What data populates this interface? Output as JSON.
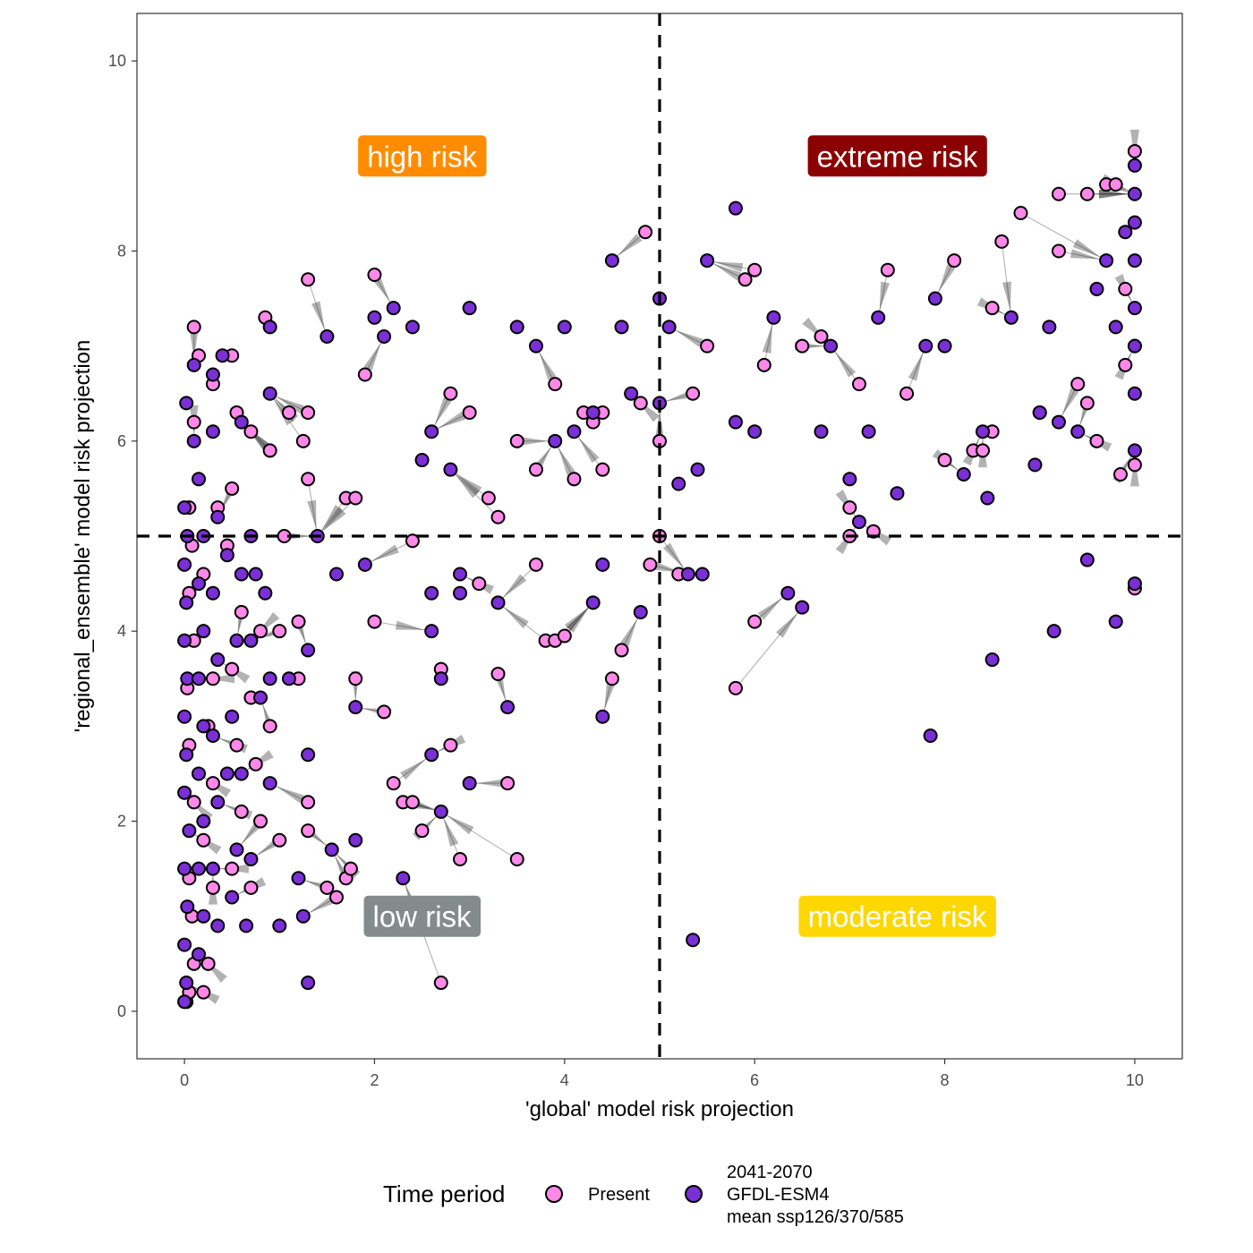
{
  "chart_data": {
    "type": "scatter",
    "title": "",
    "xlabel": "'global' model risk projection",
    "ylabel": "'regional_ensemble' model risk projection",
    "xlim": [
      -0.5,
      10.5
    ],
    "ylim": [
      -0.5,
      10.5
    ],
    "x_ticks": [
      0,
      2,
      4,
      6,
      8,
      10
    ],
    "y_ticks": [
      0,
      2,
      4,
      6,
      8,
      10
    ],
    "grid": false,
    "thresholds": {
      "x": 5,
      "y": 5,
      "style": "dashed"
    },
    "quadrant_labels": [
      {
        "text": "high risk",
        "x": 2.5,
        "y": 9,
        "color": "#FF8C00"
      },
      {
        "text": "extreme risk",
        "x": 7.5,
        "y": 9,
        "color": "#8B0000"
      },
      {
        "text": "low risk",
        "x": 2.5,
        "y": 1,
        "color": "#838B8B"
      },
      {
        "text": "moderate risk",
        "x": 7.5,
        "y": 1,
        "color": "#FFD700"
      }
    ],
    "legend": {
      "title": "Time period",
      "placement": "bottom",
      "entries": [
        {
          "label": "Present",
          "color": "#FF88E8"
        },
        {
          "label_lines": [
            "2041-2070",
            "GFDL-ESM4",
            "mean ssp126/370/585"
          ],
          "color": "#7B2FD6"
        }
      ]
    },
    "series": [
      {
        "name": "Present",
        "color": "#FF88E8",
        "points": [
          [
            0.02,
            0.1
          ],
          [
            0.05,
            0.2
          ],
          [
            0.1,
            0.5
          ],
          [
            0.08,
            1.0
          ],
          [
            0.05,
            1.4
          ],
          [
            0.1,
            2.2
          ],
          [
            0.05,
            2.8
          ],
          [
            0.03,
            3.4
          ],
          [
            0.1,
            3.9
          ],
          [
            0.05,
            4.4
          ],
          [
            0.08,
            4.9
          ],
          [
            0.05,
            5.3
          ],
          [
            0.1,
            6.2
          ],
          [
            0.1,
            7.2
          ],
          [
            0.2,
            0.2
          ],
          [
            0.25,
            0.5
          ],
          [
            0.3,
            1.3
          ],
          [
            0.2,
            1.8
          ],
          [
            0.3,
            2.4
          ],
          [
            0.25,
            3.0
          ],
          [
            0.3,
            3.5
          ],
          [
            0.2,
            4.6
          ],
          [
            0.35,
            5.3
          ],
          [
            0.3,
            6.6
          ],
          [
            0.15,
            6.9
          ],
          [
            0.5,
            1.5
          ],
          [
            0.6,
            2.1
          ],
          [
            0.55,
            2.8
          ],
          [
            0.5,
            3.6
          ],
          [
            0.6,
            4.2
          ],
          [
            0.45,
            4.9
          ],
          [
            0.5,
            5.5
          ],
          [
            0.55,
            6.3
          ],
          [
            0.5,
            6.9
          ],
          [
            0.7,
            1.3
          ],
          [
            0.8,
            2.0
          ],
          [
            0.75,
            2.6
          ],
          [
            0.7,
            3.3
          ],
          [
            0.8,
            4.0
          ],
          [
            0.7,
            6.1
          ],
          [
            0.85,
            7.3
          ],
          [
            0.9,
            3.0
          ],
          [
            0.9,
            5.9
          ],
          [
            1.0,
            1.8
          ],
          [
            1.0,
            4.0
          ],
          [
            1.05,
            5.0
          ],
          [
            1.1,
            6.3
          ],
          [
            1.2,
            4.1
          ],
          [
            1.3,
            1.9
          ],
          [
            1.3,
            2.2
          ],
          [
            1.3,
            5.6
          ],
          [
            1.25,
            6.0
          ],
          [
            1.3,
            6.3
          ],
          [
            1.3,
            7.7
          ],
          [
            1.2,
            3.5
          ],
          [
            1.5,
            1.3
          ],
          [
            1.6,
            1.2
          ],
          [
            1.7,
            1.4
          ],
          [
            1.75,
            1.5
          ],
          [
            1.8,
            3.5
          ],
          [
            1.7,
            5.4
          ],
          [
            1.8,
            5.4
          ],
          [
            1.9,
            6.7
          ],
          [
            2.0,
            4.1
          ],
          [
            2.1,
            3.15
          ],
          [
            2.0,
            7.75
          ],
          [
            2.2,
            2.4
          ],
          [
            2.3,
            2.2
          ],
          [
            2.4,
            2.2
          ],
          [
            2.5,
            1.9
          ],
          [
            2.4,
            4.95
          ],
          [
            2.7,
            0.3
          ],
          [
            2.7,
            3.6
          ],
          [
            2.8,
            2.8
          ],
          [
            2.9,
            1.6
          ],
          [
            2.8,
            6.5
          ],
          [
            3.0,
            6.3
          ],
          [
            3.1,
            4.5
          ],
          [
            3.2,
            5.4
          ],
          [
            3.3,
            5.2
          ],
          [
            3.3,
            3.55
          ],
          [
            3.4,
            2.4
          ],
          [
            3.5,
            1.6
          ],
          [
            3.5,
            6.0
          ],
          [
            3.7,
            4.7
          ],
          [
            3.7,
            5.7
          ],
          [
            3.8,
            3.9
          ],
          [
            3.9,
            3.9
          ],
          [
            4.0,
            3.95
          ],
          [
            3.9,
            6.6
          ],
          [
            4.1,
            5.6
          ],
          [
            4.2,
            6.3
          ],
          [
            4.3,
            6.2
          ],
          [
            4.4,
            5.7
          ],
          [
            4.4,
            6.3
          ],
          [
            4.5,
            3.5
          ],
          [
            4.6,
            3.8
          ],
          [
            4.9,
            4.7
          ],
          [
            4.8,
            6.4
          ],
          [
            4.85,
            8.2
          ],
          [
            5.0,
            6.0
          ],
          [
            5.0,
            5.0
          ],
          [
            5.2,
            4.6
          ],
          [
            5.35,
            6.5
          ],
          [
            5.5,
            7.0
          ],
          [
            5.8,
            3.4
          ],
          [
            5.9,
            7.7
          ],
          [
            6.0,
            4.1
          ],
          [
            6.1,
            6.8
          ],
          [
            6.0,
            7.8
          ],
          [
            6.5,
            7.0
          ],
          [
            6.7,
            7.1
          ],
          [
            7.0,
            5.0
          ],
          [
            7.0,
            5.3
          ],
          [
            7.1,
            6.6
          ],
          [
            7.25,
            5.05
          ],
          [
            7.4,
            7.8
          ],
          [
            7.6,
            6.5
          ],
          [
            8.0,
            5.8
          ],
          [
            8.1,
            7.9
          ],
          [
            8.3,
            5.9
          ],
          [
            8.4,
            5.9
          ],
          [
            8.5,
            6.1
          ],
          [
            8.5,
            7.4
          ],
          [
            8.6,
            8.1
          ],
          [
            8.8,
            8.4
          ],
          [
            9.0,
            6.3
          ],
          [
            9.2,
            8.0
          ],
          [
            9.2,
            8.6
          ],
          [
            9.4,
            6.6
          ],
          [
            9.5,
            6.4
          ],
          [
            9.5,
            8.6
          ],
          [
            9.6,
            6.0
          ],
          [
            9.7,
            8.7
          ],
          [
            9.9,
            6.8
          ],
          [
            10.0,
            7.0
          ],
          [
            9.85,
            5.65
          ],
          [
            10.0,
            5.75
          ],
          [
            10.0,
            4.45
          ],
          [
            10.0,
            9.05
          ],
          [
            9.8,
            8.7
          ],
          [
            9.9,
            7.6
          ]
        ]
      },
      {
        "name": "2041-2070 GFDL-ESM4 mean ssp126/370/585",
        "color": "#7B2FD6",
        "points": [
          [
            0.0,
            0.1
          ],
          [
            0.02,
            0.3
          ],
          [
            0.0,
            0.7
          ],
          [
            0.03,
            1.1
          ],
          [
            0.0,
            1.5
          ],
          [
            0.05,
            1.9
          ],
          [
            0.0,
            2.3
          ],
          [
            0.02,
            2.7
          ],
          [
            0.0,
            3.1
          ],
          [
            0.03,
            3.5
          ],
          [
            0.0,
            3.9
          ],
          [
            0.02,
            4.3
          ],
          [
            0.0,
            4.7
          ],
          [
            0.03,
            5.0
          ],
          [
            0.0,
            5.3
          ],
          [
            0.02,
            6.4
          ],
          [
            0.1,
            6.8
          ],
          [
            0.1,
            6.0
          ],
          [
            0.15,
            5.6
          ],
          [
            0.2,
            5.0
          ],
          [
            0.15,
            4.5
          ],
          [
            0.2,
            4.0
          ],
          [
            0.15,
            3.5
          ],
          [
            0.2,
            3.0
          ],
          [
            0.15,
            2.5
          ],
          [
            0.2,
            2.0
          ],
          [
            0.15,
            1.5
          ],
          [
            0.2,
            1.0
          ],
          [
            0.15,
            0.6
          ],
          [
            0.3,
            6.7
          ],
          [
            0.3,
            6.1
          ],
          [
            0.35,
            5.2
          ],
          [
            0.3,
            4.4
          ],
          [
            0.35,
            3.7
          ],
          [
            0.3,
            2.9
          ],
          [
            0.35,
            2.2
          ],
          [
            0.3,
            1.5
          ],
          [
            0.35,
            0.9
          ],
          [
            0.4,
            6.9
          ],
          [
            0.45,
            4.8
          ],
          [
            0.5,
            3.1
          ],
          [
            0.45,
            2.5
          ],
          [
            0.5,
            1.2
          ],
          [
            0.6,
            6.2
          ],
          [
            0.6,
            4.6
          ],
          [
            0.55,
            3.9
          ],
          [
            0.6,
            2.5
          ],
          [
            0.55,
            1.7
          ],
          [
            0.65,
            0.9
          ],
          [
            0.7,
            5.0
          ],
          [
            0.75,
            4.6
          ],
          [
            0.7,
            3.9
          ],
          [
            0.8,
            3.3
          ],
          [
            0.7,
            1.6
          ],
          [
            0.9,
            7.2
          ],
          [
            0.9,
            6.5
          ],
          [
            0.85,
            4.4
          ],
          [
            0.9,
            3.5
          ],
          [
            0.9,
            2.4
          ],
          [
            1.0,
            0.9
          ],
          [
            1.1,
            3.5
          ],
          [
            1.2,
            1.4
          ],
          [
            1.25,
            1.0
          ],
          [
            1.3,
            0.3
          ],
          [
            1.3,
            2.7
          ],
          [
            1.3,
            3.8
          ],
          [
            1.4,
            5.0
          ],
          [
            1.5,
            7.1
          ],
          [
            1.55,
            1.7
          ],
          [
            1.6,
            4.6
          ],
          [
            1.8,
            1.8
          ],
          [
            1.8,
            3.2
          ],
          [
            1.9,
            4.7
          ],
          [
            2.0,
            7.3
          ],
          [
            2.1,
            7.1
          ],
          [
            2.2,
            7.4
          ],
          [
            2.3,
            1.4
          ],
          [
            2.4,
            7.2
          ],
          [
            2.5,
            5.8
          ],
          [
            2.6,
            6.1
          ],
          [
            2.6,
            4.4
          ],
          [
            2.6,
            4.0
          ],
          [
            2.7,
            3.5
          ],
          [
            2.6,
            2.7
          ],
          [
            2.7,
            2.1
          ],
          [
            2.8,
            5.7
          ],
          [
            2.9,
            4.6
          ],
          [
            2.9,
            4.4
          ],
          [
            3.0,
            2.4
          ],
          [
            3.0,
            7.4
          ],
          [
            3.3,
            4.3
          ],
          [
            3.4,
            3.2
          ],
          [
            3.5,
            7.2
          ],
          [
            3.7,
            7.0
          ],
          [
            3.9,
            6.0
          ],
          [
            4.0,
            7.2
          ],
          [
            4.1,
            6.1
          ],
          [
            4.3,
            6.3
          ],
          [
            4.3,
            4.3
          ],
          [
            4.4,
            4.7
          ],
          [
            4.4,
            3.1
          ],
          [
            4.5,
            7.9
          ],
          [
            4.6,
            7.2
          ],
          [
            4.7,
            6.5
          ],
          [
            4.8,
            4.2
          ],
          [
            5.0,
            6.4
          ],
          [
            5.0,
            7.5
          ],
          [
            5.1,
            7.2
          ],
          [
            5.2,
            5.55
          ],
          [
            5.3,
            4.6
          ],
          [
            5.35,
            0.75
          ],
          [
            5.4,
            5.7
          ],
          [
            5.45,
            4.6
          ],
          [
            5.5,
            7.9
          ],
          [
            5.8,
            8.45
          ],
          [
            5.8,
            6.2
          ],
          [
            6.0,
            6.1
          ],
          [
            6.2,
            7.3
          ],
          [
            6.35,
            4.4
          ],
          [
            6.5,
            4.25
          ],
          [
            6.7,
            6.1
          ],
          [
            6.8,
            7.0
          ],
          [
            7.0,
            5.6
          ],
          [
            7.1,
            5.15
          ],
          [
            7.2,
            6.1
          ],
          [
            7.3,
            7.3
          ],
          [
            7.5,
            5.45
          ],
          [
            7.8,
            7.0
          ],
          [
            7.85,
            2.9
          ],
          [
            7.9,
            7.5
          ],
          [
            8.0,
            7.0
          ],
          [
            8.2,
            5.65
          ],
          [
            8.4,
            6.1
          ],
          [
            8.45,
            5.4
          ],
          [
            8.5,
            3.7
          ],
          [
            8.7,
            7.3
          ],
          [
            8.95,
            5.75
          ],
          [
            9.0,
            6.3
          ],
          [
            9.1,
            7.2
          ],
          [
            9.15,
            4.0
          ],
          [
            9.2,
            6.2
          ],
          [
            9.4,
            6.1
          ],
          [
            9.5,
            4.75
          ],
          [
            9.6,
            7.6
          ],
          [
            9.8,
            4.1
          ],
          [
            9.8,
            7.2
          ],
          [
            10.0,
            4.5
          ],
          [
            10.0,
            5.9
          ],
          [
            10.0,
            6.5
          ],
          [
            10.0,
            7.0
          ],
          [
            10.0,
            7.4
          ],
          [
            10.0,
            7.9
          ],
          [
            10.0,
            8.3
          ],
          [
            10.0,
            8.6
          ],
          [
            10.0,
            8.9
          ],
          [
            9.9,
            8.2
          ],
          [
            9.7,
            7.9
          ]
        ]
      }
    ]
  }
}
